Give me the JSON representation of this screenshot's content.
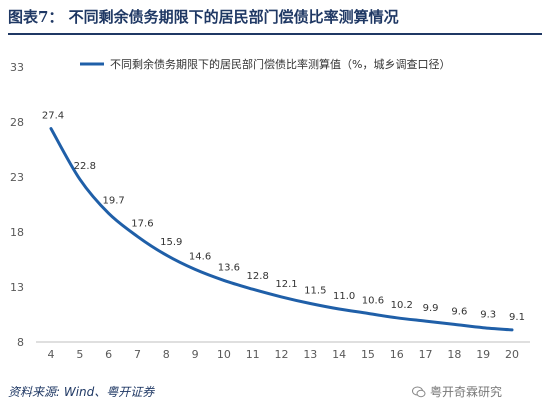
{
  "figure": {
    "title": "图表7：  不同剩余债务期限下的居民部门偿债比率测算情况",
    "source": "资料来源: Wind、粤开证券",
    "watermark": "粤开奇霖研究",
    "watermark_icon": "wechat-icon"
  },
  "colors": {
    "line": "#1f5fa8",
    "title": "#1f3864",
    "axis_text": "#595959",
    "axis_line": "#bfbfbf"
  },
  "chart_data": {
    "type": "line",
    "x": [
      4,
      5,
      6,
      7,
      8,
      9,
      10,
      11,
      12,
      13,
      14,
      15,
      16,
      17,
      18,
      19,
      20
    ],
    "series": [
      {
        "name": "不同剩余债务期限下的居民部门偿债比率测算值（%，城乡调查口径）",
        "values": [
          27.4,
          22.8,
          19.7,
          17.6,
          15.9,
          14.6,
          13.6,
          12.8,
          12.1,
          11.5,
          11.0,
          10.6,
          10.2,
          9.9,
          9.6,
          9.3,
          9.1
        ],
        "labels": [
          "27.4",
          "22.8",
          "19.7",
          "17.6",
          "15.9",
          "14.6",
          "13.6",
          "12.8",
          "12.1",
          "11.5",
          "11.0",
          "10.6",
          "10.2",
          "9.9",
          "9.6",
          "9.3",
          "9.1"
        ]
      }
    ],
    "xticks": [
      "4",
      "5",
      "6",
      "7",
      "8",
      "9",
      "10",
      "11",
      "12",
      "13",
      "14",
      "15",
      "16",
      "17",
      "18",
      "19",
      "20"
    ],
    "yticks": [
      "8",
      "13",
      "18",
      "23",
      "28",
      "33"
    ],
    "ytick_values": [
      8,
      13,
      18,
      23,
      28,
      33
    ],
    "ylim": [
      8,
      33
    ],
    "xlim": [
      4,
      20
    ],
    "grid": false,
    "legend_position": "top",
    "xlabel": "",
    "ylabel": ""
  }
}
